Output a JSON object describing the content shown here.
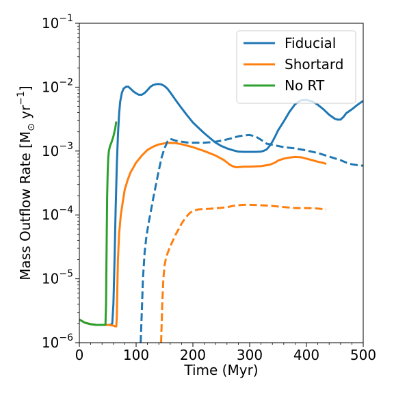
{
  "chart_data": {
    "type": "line",
    "xlabel": "Time (Myr)",
    "ylabel_main": "Mass Outflow Rate [M",
    "ylabel_sub": "⊙",
    "ylabel_mid": " yr",
    "ylabel_sup": "−1",
    "ylabel_end": "]",
    "xlim": [
      0,
      500
    ],
    "ylim": [
      1e-06,
      0.1
    ],
    "yscale": "log",
    "grid": false,
    "legend_placement": "top-right",
    "x_ticks": [
      0,
      100,
      200,
      300,
      400,
      500
    ],
    "x_tick_labels": [
      "0",
      "100",
      "200",
      "300",
      "400",
      "500"
    ],
    "y_ticks": [
      {
        "value": 1e-06,
        "mantissa": "10",
        "exp": "−6"
      },
      {
        "value": 1e-05,
        "mantissa": "10",
        "exp": "−5"
      },
      {
        "value": 0.0001,
        "mantissa": "10",
        "exp": "−4"
      },
      {
        "value": 0.001,
        "mantissa": "10",
        "exp": "−3"
      },
      {
        "value": 0.01,
        "mantissa": "10",
        "exp": "−2"
      },
      {
        "value": 0.1,
        "mantissa": "10",
        "exp": "−1"
      }
    ],
    "series": [
      {
        "name": "Fiducial",
        "color": "#1f77b4",
        "style": "solid",
        "x": [
          0,
          10,
          20,
          30,
          40,
          50,
          55,
          58,
          60,
          62,
          64,
          66,
          68,
          70,
          72,
          75,
          78,
          82,
          86,
          90,
          95,
          100,
          105,
          110,
          115,
          120,
          125,
          130,
          135,
          140,
          145,
          150,
          155,
          160,
          165,
          170,
          180,
          190,
          200,
          210,
          220,
          230,
          240,
          250,
          260,
          270,
          280,
          290,
          300,
          310,
          320,
          325,
          330,
          335,
          340,
          345,
          350,
          360,
          370,
          380,
          390,
          400,
          410,
          420,
          430,
          440,
          450,
          455,
          460,
          465,
          470,
          480,
          490,
          500
        ],
        "y": [
          2.3e-06,
          2.05e-06,
          1.95e-06,
          1.9e-06,
          1.9e-06,
          1.9e-06,
          1.9e-06,
          2e-06,
          4e-06,
          2e-05,
          0.00013,
          0.0006,
          0.0018,
          0.0038,
          0.006,
          0.0082,
          0.0095,
          0.0101,
          0.0102,
          0.0095,
          0.0086,
          0.008,
          0.0076,
          0.0076,
          0.0081,
          0.009,
          0.0101,
          0.0108,
          0.0111,
          0.0112,
          0.011,
          0.0104,
          0.0095,
          0.0083,
          0.0072,
          0.0062,
          0.0047,
          0.0036,
          0.0028,
          0.0023,
          0.0019,
          0.0016,
          0.00135,
          0.0012,
          0.0011,
          0.00103,
          0.00098,
          0.00097,
          0.00097,
          0.00097,
          0.00098,
          0.00101,
          0.00106,
          0.0012,
          0.0014,
          0.0017,
          0.0021,
          0.0029,
          0.0041,
          0.0054,
          0.0062,
          0.0063,
          0.006,
          0.0053,
          0.0045,
          0.0037,
          0.0032,
          0.0031,
          0.0031,
          0.0034,
          0.0039,
          0.0045,
          0.0053,
          0.0061
        ]
      },
      {
        "name": "Shortard",
        "color": "#ff7f0e",
        "style": "solid",
        "x": [
          0,
          10,
          20,
          30,
          40,
          50,
          60,
          63,
          64,
          65,
          66,
          67,
          68,
          70,
          73,
          77,
          80,
          85,
          90,
          95,
          100,
          110,
          120,
          130,
          140,
          150,
          160,
          170,
          180,
          200,
          220,
          240,
          255,
          265,
          270,
          275,
          280,
          290,
          300,
          320,
          335,
          345,
          350,
          360,
          370,
          380,
          390,
          400,
          410,
          420,
          430,
          435
        ],
        "y": [
          2.3e-06,
          2.05e-06,
          1.95e-06,
          1.9e-06,
          1.9e-06,
          1.9e-06,
          1.85e-06,
          1.8e-06,
          1.8e-06,
          1.8e-06,
          2.5e-06,
          8e-06,
          2e-05,
          5e-05,
          0.0001,
          0.00017,
          0.00025,
          0.00035,
          0.00046,
          0.00055,
          0.00066,
          0.00085,
          0.00104,
          0.00117,
          0.00127,
          0.00132,
          0.00134,
          0.00133,
          0.00128,
          0.00115,
          0.001,
          0.00085,
          0.00072,
          0.00061,
          0.00058,
          0.00056,
          0.00056,
          0.00057,
          0.00057,
          0.00058,
          0.00061,
          0.00066,
          0.00071,
          0.00076,
          0.00079,
          0.00081,
          0.0008,
          0.00076,
          0.00072,
          0.00068,
          0.00065,
          0.00063
        ]
      },
      {
        "name": "No RT",
        "color": "#2ca02c",
        "style": "solid",
        "x": [
          0,
          10,
          20,
          30,
          40,
          46,
          47,
          48,
          49,
          50,
          51,
          52,
          54,
          57,
          60,
          63,
          65
        ],
        "y": [
          2.3e-06,
          2.05e-06,
          1.95e-06,
          1.9e-06,
          1.9e-06,
          1.9e-06,
          4e-06,
          3e-05,
          0.0002,
          0.0005,
          0.0008,
          0.001,
          0.0012,
          0.0014,
          0.0017,
          0.0022,
          0.0029
        ]
      },
      {
        "name": "",
        "color": "#1f77b4",
        "style": "dashed",
        "x": [
          108,
          110,
          112,
          115,
          118,
          122,
          126,
          130,
          135,
          140,
          145,
          150,
          155,
          160,
          165,
          170,
          180,
          190,
          200,
          210,
          220,
          230,
          240,
          250,
          260,
          270,
          280,
          290,
          295,
          300,
          310,
          320,
          330,
          340,
          350,
          360,
          380,
          400,
          420,
          440,
          460,
          470,
          480,
          490,
          500
        ],
        "y": [
          1e-06,
          3e-06,
          1e-05,
          2.6e-05,
          4.5e-05,
          7.5e-05,
          0.000115,
          0.00018,
          0.0003,
          0.0005,
          0.0008,
          0.0011,
          0.0014,
          0.00155,
          0.0015,
          0.00145,
          0.0014,
          0.00136,
          0.00135,
          0.00135,
          0.00135,
          0.00137,
          0.0014,
          0.00145,
          0.00152,
          0.0016,
          0.0017,
          0.00175,
          0.00177,
          0.00178,
          0.0017,
          0.0015,
          0.0013,
          0.00125,
          0.0012,
          0.00115,
          0.0011,
          0.00102,
          0.00093,
          0.00082,
          0.00072,
          0.00066,
          0.00062,
          0.0006,
          0.00059
        ]
      },
      {
        "name": "",
        "color": "#ff7f0e",
        "style": "dashed",
        "x": [
          144,
          146,
          148,
          150,
          153,
          156,
          160,
          165,
          170,
          175,
          180,
          185,
          190,
          195,
          200,
          210,
          220,
          230,
          240,
          250,
          260,
          270,
          280,
          290,
          300,
          320,
          340,
          360,
          380,
          400,
          420,
          435
        ],
        "y": [
          1e-06,
          4e-06,
          1e-05,
          1.6e-05,
          2.2e-05,
          2.6e-05,
          3.2e-05,
          4e-05,
          5e-05,
          6e-05,
          7.3e-05,
          8.5e-05,
          9.7e-05,
          0.000108,
          0.000116,
          0.000122,
          0.000124,
          0.000125,
          0.000127,
          0.000129,
          0.000132,
          0.000138,
          0.000142,
          0.000144,
          0.000144,
          0.000142,
          0.000138,
          0.000133,
          0.000128,
          0.000128,
          0.000126,
          0.000122
        ]
      }
    ]
  }
}
